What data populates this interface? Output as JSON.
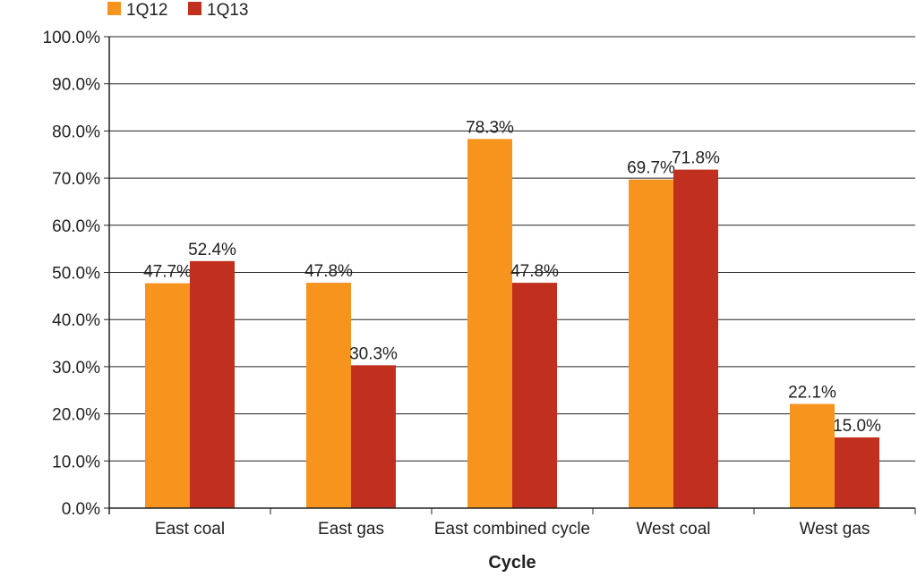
{
  "chart_data": {
    "type": "bar",
    "title": "",
    "xlabel": "Cycle",
    "ylabel": "",
    "ylim": [
      0,
      100
    ],
    "yticks": [
      "0.0%",
      "10.0%",
      "20.0%",
      "30.0%",
      "40.0%",
      "50.0%",
      "60.0%",
      "70.0%",
      "80.0%",
      "90.0%",
      "100.0%"
    ],
    "categories": [
      "East coal",
      "East gas",
      "East combined cycle",
      "West coal",
      "West gas"
    ],
    "series": [
      {
        "name": "1Q12",
        "color": "#F7941D",
        "values": [
          47.7,
          47.8,
          78.3,
          69.7,
          22.1
        ],
        "labels": [
          "47.7%",
          "47.8%",
          "78.3%",
          "69.7%",
          "22.1%"
        ]
      },
      {
        "name": "1Q13",
        "color": "#C1301F",
        "values": [
          52.4,
          30.3,
          47.8,
          71.8,
          15.0
        ],
        "labels": [
          "52.4%",
          "30.3%",
          "47.8%",
          "71.8%",
          "15.0%"
        ]
      }
    ],
    "grid": true,
    "legend": "top-left"
  }
}
